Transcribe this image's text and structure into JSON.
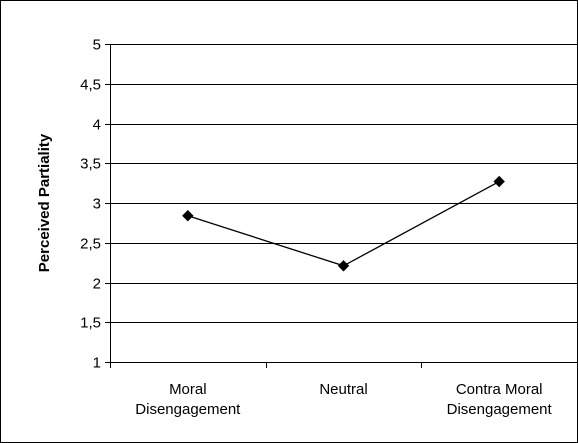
{
  "chart_data": {
    "type": "line",
    "title": "",
    "xlabel": "",
    "ylabel": "Perceived Partiality",
    "categories": [
      [
        "Moral",
        "Disengagement"
      ],
      [
        "Neutral"
      ],
      [
        "Contra Moral",
        "Disengagement"
      ]
    ],
    "series": [
      {
        "values": [
          2.84,
          2.21,
          3.27
        ]
      }
    ],
    "ylim": [
      1,
      5
    ],
    "yticks": [
      "1",
      "1,5",
      "2",
      "2,5",
      "3",
      "3,5",
      "4",
      "4,5",
      "5"
    ],
    "ytick_values": [
      1,
      1.5,
      2,
      2.5,
      3,
      3.5,
      4,
      4.5,
      5
    ],
    "grid": true,
    "legend": "none",
    "colors": {
      "line": "#000000",
      "marker": "#000000",
      "grid": "#000000",
      "background": "#ffffff"
    }
  }
}
